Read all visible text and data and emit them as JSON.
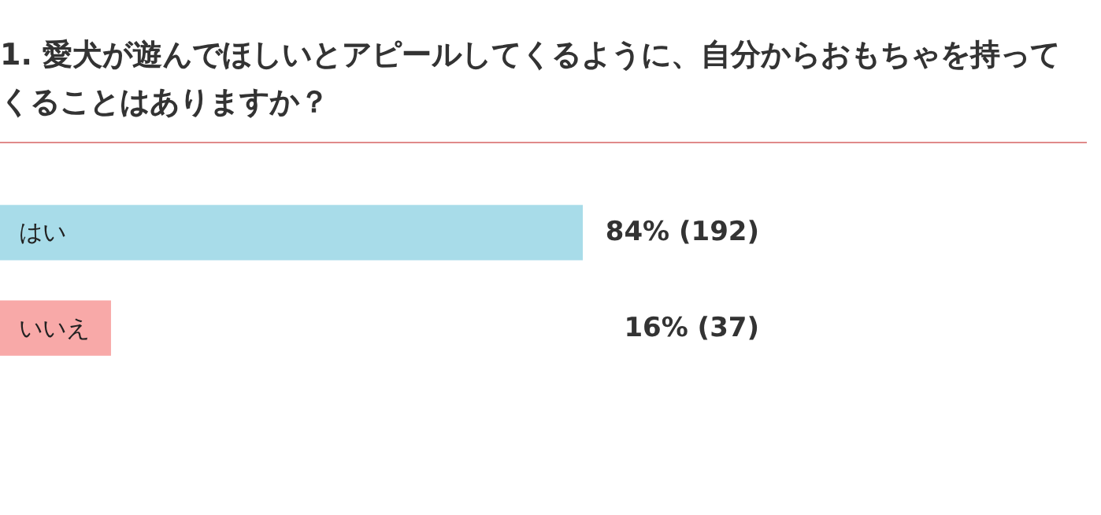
{
  "chart_data": {
    "type": "bar",
    "orientation": "horizontal",
    "title": "1. 愛犬が遊んでほしいとアピールしてくるように、自分からおもちゃを持ってくることはありますか？",
    "categories": [
      "はい",
      "いいえ"
    ],
    "values": [
      84,
      16
    ],
    "colors": [
      "#a8dce9",
      "#f8a9a8"
    ],
    "value_labels": [
      "84% (192)",
      "16% (37)"
    ]
  }
}
